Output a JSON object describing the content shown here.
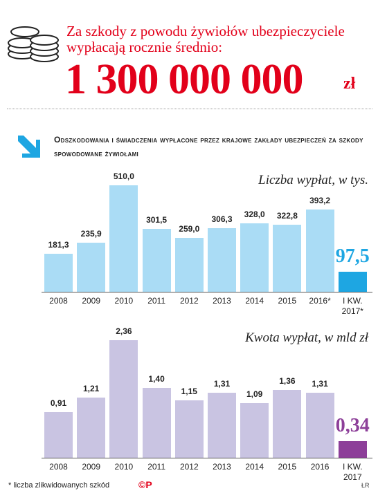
{
  "header": {
    "lead": "Za szkody z powodu żywiołów ubezpieczyciele wypłacają rocznie średnio:",
    "amount": "1 300 000 000",
    "unit": "zł",
    "subtitle": "Odszkodowania i świadczenia wypłacone przez krajowe zakłady ubezpieczeń za szkody spowodowane żywiołami"
  },
  "chart_data": [
    {
      "type": "bar",
      "title": "Liczba wypłat, w tys.",
      "categories": [
        "2008",
        "2009",
        "2010",
        "2011",
        "2012",
        "2013",
        "2014",
        "2015",
        "2016*",
        "I KW. 2017*"
      ],
      "values": [
        181.3,
        235.9,
        510.0,
        301.5,
        259.0,
        306.3,
        328.0,
        322.8,
        393.2,
        97.5
      ],
      "value_labels": [
        "181,3",
        "235,9",
        "510,0",
        "301,5",
        "259,0",
        "306,3",
        "328,0",
        "322,8",
        "393,2",
        "97,5"
      ],
      "color": "#aadcf5",
      "highlight_color": "#1ea6e2"
    },
    {
      "type": "bar",
      "title": "Kwota wypłat, w mld zł",
      "categories": [
        "2008",
        "2009",
        "2010",
        "2011",
        "2012",
        "2013",
        "2014",
        "2015",
        "2016",
        "I KW. 2017"
      ],
      "values": [
        0.91,
        1.21,
        2.36,
        1.4,
        1.15,
        1.31,
        1.09,
        1.36,
        1.31,
        0.34
      ],
      "value_labels": [
        "0,91",
        "1,21",
        "2,36",
        "1,40",
        "1,15",
        "1,31",
        "1,09",
        "1,36",
        "1,31",
        "0,34"
      ],
      "color": "#c9c4e2",
      "highlight_color": "#8d3f99"
    }
  ],
  "footer": {
    "note": "* liczba zlikwidowanych szkód",
    "logo": "©P",
    "credit": "ŁR"
  }
}
